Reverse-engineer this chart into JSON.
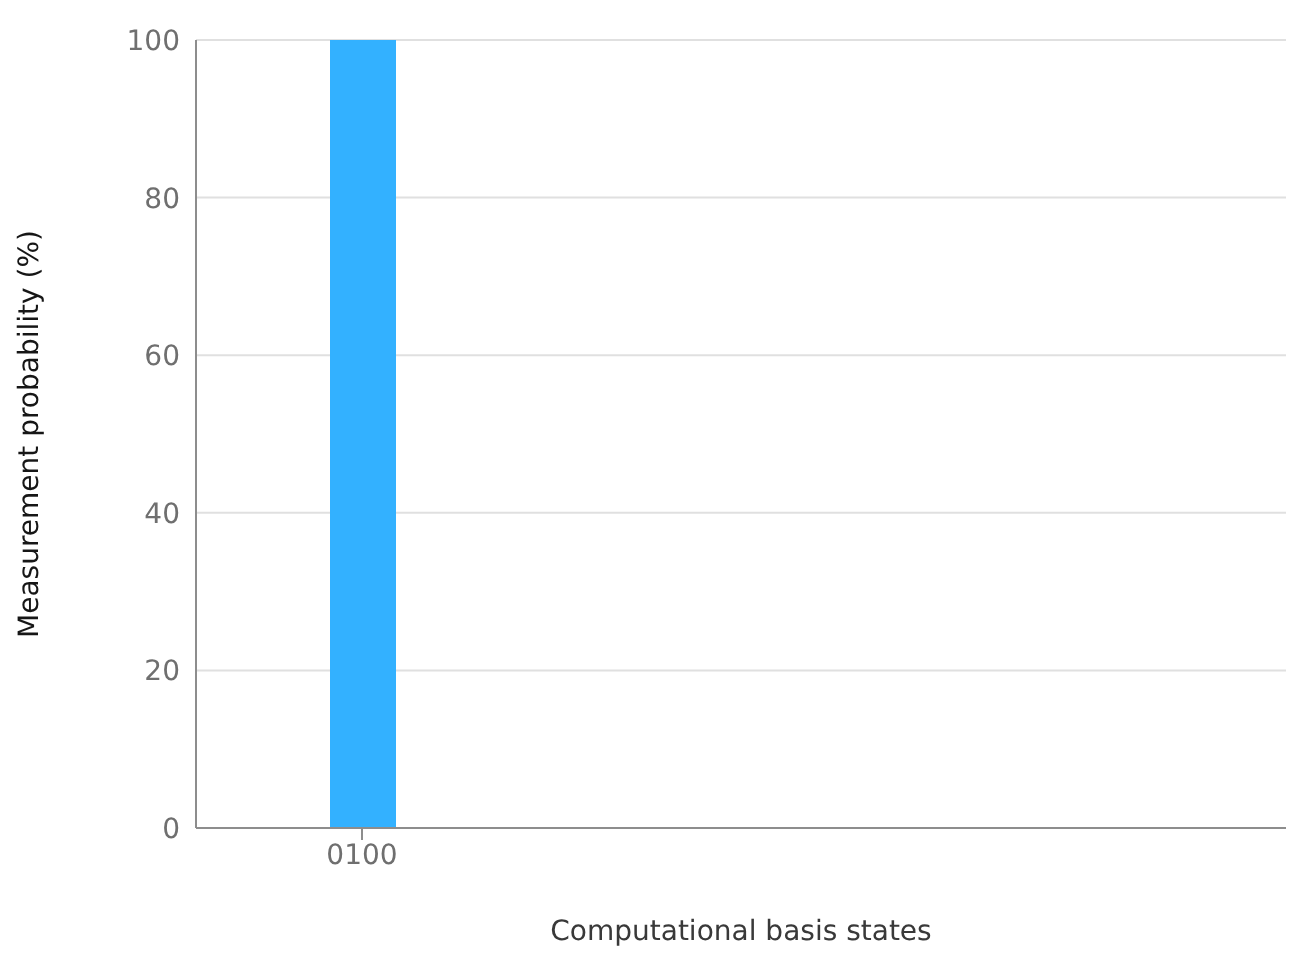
{
  "chart_data": {
    "type": "bar",
    "xlabel": "Computational basis states",
    "ylabel": "Measurement probability (%)",
    "categories": [
      "0100"
    ],
    "values": [
      100
    ],
    "color": "#33b1ff",
    "ylim": [
      0,
      100
    ],
    "yticks": [
      0,
      20,
      40,
      60,
      80,
      100
    ],
    "grid": "y"
  }
}
